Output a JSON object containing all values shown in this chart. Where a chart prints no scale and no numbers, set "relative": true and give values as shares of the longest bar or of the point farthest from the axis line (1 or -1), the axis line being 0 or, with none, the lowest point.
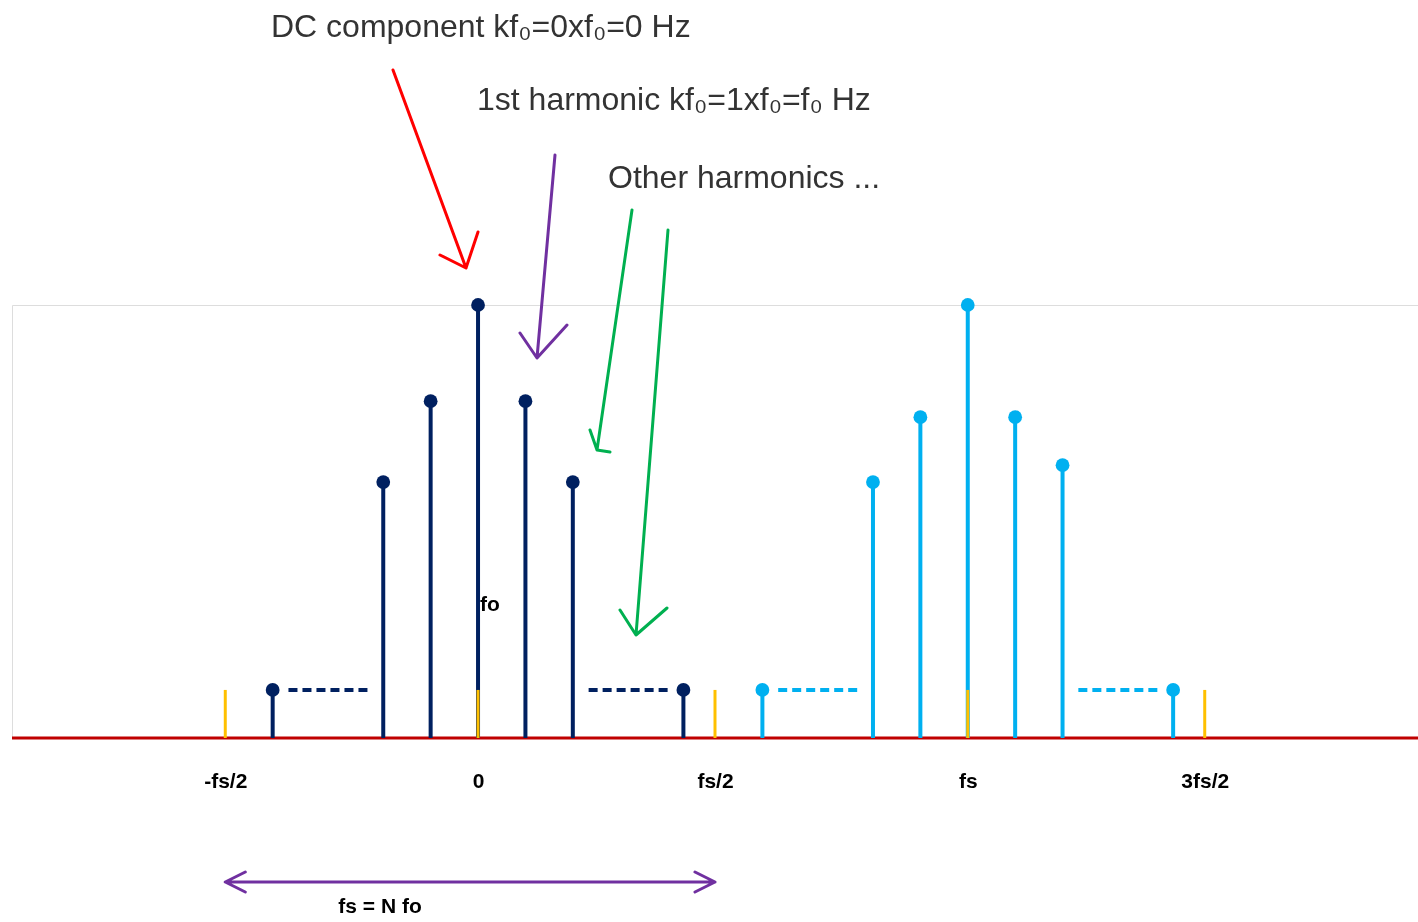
{
  "chart_data": {
    "type": "lollipop",
    "relative": true,
    "marker": "circle",
    "grid": false,
    "categories": [
      null,
      null,
      null,
      null,
      null,
      null,
      null,
      null,
      null,
      null,
      null,
      null,
      null,
      "-fs/2",
      null,
      null,
      null,
      null,
      null,
      null,
      null,
      null,
      null,
      null,
      null,
      null,
      null,
      null,
      null,
      "0",
      null,
      null,
      null,
      null,
      null,
      null,
      null,
      null,
      null,
      null,
      null,
      null,
      null,
      null,
      "fs/2",
      null,
      null,
      null,
      null,
      null,
      null,
      null,
      null,
      null,
      null,
      null,
      null,
      null,
      null,
      null,
      "fs",
      null,
      null,
      null,
      null,
      null,
      null,
      null,
      null,
      null,
      null,
      null,
      null,
      null,
      null,
      "3fs/2",
      null,
      null,
      null,
      null,
      null,
      null,
      null,
      null,
      null,
      null,
      null,
      null,
      null
    ],
    "series": [
      {
        "color": "#002060",
        "values": [
          null,
          null,
          null,
          null,
          null,
          null,
          null,
          null,
          null,
          null,
          null,
          null,
          null,
          null,
          null,
          null,
          0.111,
          null,
          null,
          null,
          null,
          null,
          null,
          0.591,
          null,
          null,
          0.778,
          null,
          null,
          1,
          null,
          null,
          0.778,
          null,
          null,
          0.591,
          null,
          null,
          null,
          null,
          null,
          null,
          0.111,
          null,
          null,
          null,
          null,
          null,
          null,
          null,
          null,
          null,
          null,
          null,
          null,
          null,
          null,
          null,
          null,
          null,
          null,
          null,
          null,
          null,
          null,
          null,
          null,
          null,
          null,
          null,
          null,
          null,
          null,
          null,
          null,
          null,
          null,
          null,
          null,
          null,
          null,
          null,
          null,
          null,
          null,
          null,
          null,
          null,
          null
        ]
      },
      {
        "color": "#00b0f0",
        "values": [
          null,
          null,
          null,
          null,
          null,
          null,
          null,
          null,
          null,
          null,
          null,
          null,
          null,
          null,
          null,
          null,
          null,
          null,
          null,
          null,
          null,
          null,
          null,
          null,
          null,
          null,
          null,
          null,
          null,
          null,
          null,
          null,
          null,
          null,
          null,
          null,
          null,
          null,
          null,
          null,
          null,
          null,
          null,
          null,
          null,
          null,
          null,
          0.111,
          null,
          null,
          null,
          null,
          null,
          null,
          0.591,
          null,
          null,
          0.741,
          null,
          null,
          1,
          null,
          null,
          0.741,
          null,
          null,
          0.63,
          null,
          null,
          null,
          null,
          null,
          null,
          0.111,
          null,
          null,
          null,
          null,
          null,
          null,
          null,
          null,
          null,
          null,
          null,
          null,
          null,
          null,
          null
        ]
      },
      {
        "type": "line",
        "line_style": "dashed",
        "marker": "none",
        "color": "#002060",
        "values": [
          null,
          null,
          null,
          null,
          null,
          null,
          null,
          null,
          null,
          null,
          null,
          null,
          null,
          null,
          null,
          null,
          null,
          0.111,
          0.111,
          0.111,
          0.111,
          0.111,
          0.111,
          null,
          null,
          null,
          null,
          null,
          null,
          null,
          null,
          null,
          null,
          null,
          null,
          null,
          0.111,
          0.111,
          0.111,
          0.111,
          0.111,
          0.111,
          null,
          null,
          null,
          null,
          null,
          null,
          null,
          null,
          null,
          null,
          null,
          null,
          null,
          null,
          null,
          null,
          null,
          null,
          null,
          null,
          null,
          null,
          null,
          null,
          null,
          null,
          null,
          null,
          null,
          null,
          null,
          null,
          null,
          null,
          null,
          null,
          null,
          null,
          null,
          null,
          null,
          null,
          null,
          null,
          null,
          null,
          null
        ]
      },
      {
        "type": "line",
        "line_style": "dashed",
        "marker": "none",
        "color": "#00b0f0",
        "values": [
          null,
          null,
          null,
          null,
          null,
          null,
          null,
          null,
          null,
          null,
          null,
          null,
          null,
          null,
          null,
          null,
          null,
          null,
          null,
          null,
          null,
          null,
          null,
          null,
          null,
          null,
          null,
          null,
          null,
          null,
          null,
          null,
          null,
          null,
          null,
          null,
          null,
          null,
          null,
          null,
          null,
          null,
          null,
          null,
          null,
          null,
          null,
          null,
          0.111,
          0.111,
          0.111,
          0.111,
          0.111,
          0.111,
          null,
          null,
          null,
          null,
          null,
          null,
          null,
          null,
          null,
          null,
          null,
          null,
          null,
          0.111,
          0.111,
          0.111,
          0.111,
          0.111,
          0.111,
          null,
          null,
          null,
          null,
          null,
          null,
          null,
          null,
          null,
          null,
          null,
          null,
          null,
          null,
          null,
          null
        ]
      },
      {
        "type": "bar",
        "color": "#ffc000",
        "values": [
          null,
          null,
          null,
          null,
          null,
          null,
          null,
          null,
          null,
          null,
          null,
          null,
          null,
          0.111,
          null,
          null,
          null,
          null,
          null,
          null,
          null,
          null,
          null,
          null,
          null,
          null,
          null,
          null,
          null,
          0.111,
          null,
          null,
          null,
          null,
          null,
          null,
          null,
          null,
          null,
          null,
          null,
          null,
          null,
          null,
          0.111,
          null,
          null,
          null,
          null,
          null,
          null,
          null,
          null,
          null,
          null,
          null,
          null,
          null,
          null,
          null,
          0.111,
          null,
          null,
          null,
          null,
          null,
          null,
          null,
          null,
          null,
          null,
          null,
          null,
          null,
          null,
          0.111,
          null,
          null,
          null,
          null,
          null,
          null,
          null,
          null,
          null,
          null,
          null,
          null,
          null
        ]
      }
    ],
    "annotations": [
      "DC component kf₀=0xf₀=0 Hz",
      "1st harmonic kf₀=1xf₀=f₀ Hz",
      "Other harmonics ...",
      "fo",
      "fs = N fo"
    ]
  }
}
